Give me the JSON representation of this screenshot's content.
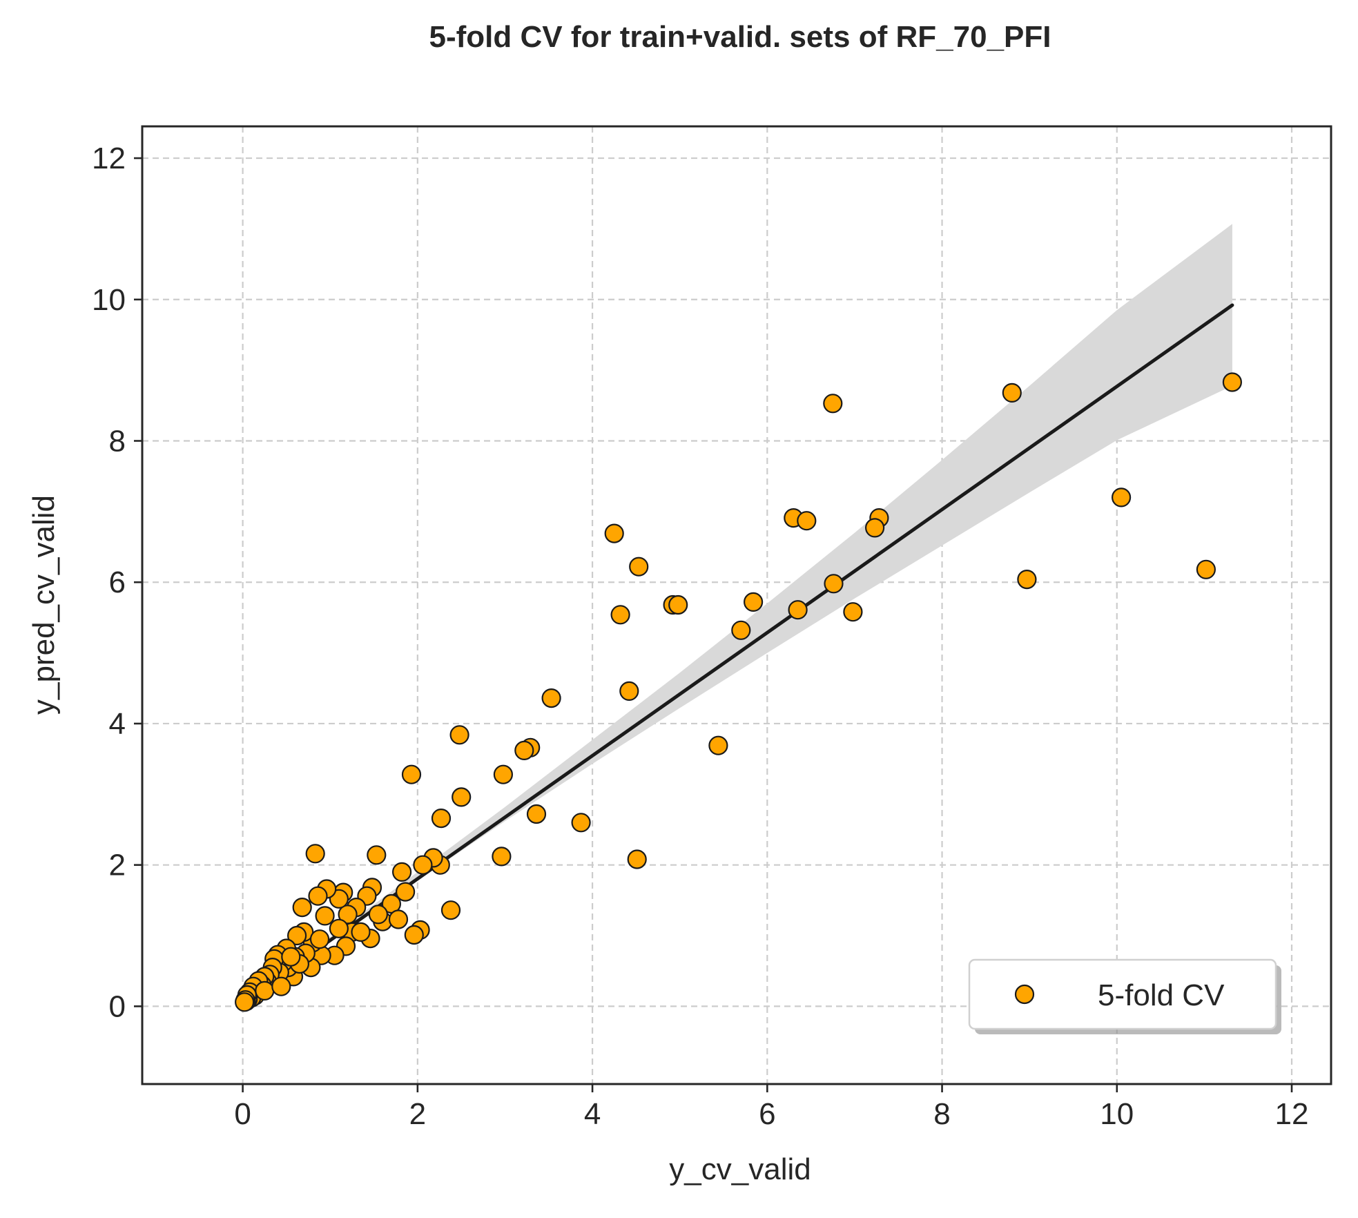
{
  "chart_data": {
    "type": "scatter",
    "title": "5-fold CV for train+valid. sets of RF_70_PFI",
    "xlabel": "y_cv_valid",
    "ylabel": "y_pred_cv_valid",
    "xlim": [
      -1.15,
      12.45
    ],
    "ylim": [
      -1.1,
      12.45
    ],
    "x_ticks": [
      0,
      2,
      4,
      6,
      8,
      10,
      12
    ],
    "y_ticks": [
      0,
      2,
      4,
      6,
      8,
      10,
      12
    ],
    "x_tick_labels": [
      "0",
      "2",
      "4",
      "6",
      "8",
      "10",
      "12"
    ],
    "y_tick_labels": [
      "0",
      "2",
      "4",
      "6",
      "8",
      "10",
      "12"
    ],
    "grid": true,
    "legend": {
      "position": "lower-right",
      "entries": [
        "5-fold CV"
      ]
    },
    "colors": {
      "points": "#ffa500",
      "point_edge": "#1a1a1a",
      "fit_line": "#1a1a1a",
      "ci_band": "#d9d9d9"
    },
    "series": [
      {
        "name": "5-fold CV",
        "points": [
          [
            11.32,
            8.83
          ],
          [
            8.8,
            8.68
          ],
          [
            6.75,
            8.53
          ],
          [
            10.05,
            7.2
          ],
          [
            11.02,
            6.18
          ],
          [
            8.97,
            6.04
          ],
          [
            7.28,
            6.91
          ],
          [
            7.23,
            6.77
          ],
          [
            6.3,
            6.91
          ],
          [
            6.45,
            6.87
          ],
          [
            6.76,
            5.98
          ],
          [
            6.98,
            5.58
          ],
          [
            6.35,
            5.61
          ],
          [
            5.84,
            5.72
          ],
          [
            5.7,
            5.32
          ],
          [
            5.44,
            3.69
          ],
          [
            4.25,
            6.69
          ],
          [
            4.53,
            6.22
          ],
          [
            4.32,
            5.54
          ],
          [
            4.92,
            5.68
          ],
          [
            4.98,
            5.68
          ],
          [
            4.42,
            4.46
          ],
          [
            4.51,
            2.08
          ],
          [
            3.53,
            4.36
          ],
          [
            3.29,
            3.66
          ],
          [
            3.22,
            3.62
          ],
          [
            2.98,
            3.28
          ],
          [
            3.36,
            2.72
          ],
          [
            3.87,
            2.6
          ],
          [
            2.96,
            2.12
          ],
          [
            2.48,
            3.84
          ],
          [
            2.5,
            2.96
          ],
          [
            1.93,
            3.28
          ],
          [
            2.27,
            2.66
          ],
          [
            2.38,
            1.36
          ],
          [
            2.26,
            2.0
          ],
          [
            2.18,
            2.1
          ],
          [
            2.06,
            2.0
          ],
          [
            2.03,
            1.08
          ],
          [
            1.96,
            1.01
          ],
          [
            1.86,
            1.62
          ],
          [
            1.82,
            1.9
          ],
          [
            1.53,
            2.14
          ],
          [
            1.48,
            1.68
          ],
          [
            1.42,
            1.56
          ],
          [
            1.46,
            0.96
          ],
          [
            1.6,
            1.2
          ],
          [
            1.7,
            1.45
          ],
          [
            1.78,
            1.23
          ],
          [
            1.3,
            1.4
          ],
          [
            1.2,
            1.3
          ],
          [
            1.15,
            1.61
          ],
          [
            1.1,
            1.52
          ],
          [
            1.25,
            1.05
          ],
          [
            1.35,
            1.05
          ],
          [
            1.18,
            0.85
          ],
          [
            1.05,
            0.72
          ],
          [
            0.96,
            1.66
          ],
          [
            0.86,
            1.56
          ],
          [
            0.83,
            2.16
          ],
          [
            0.94,
            1.28
          ],
          [
            0.9,
            0.72
          ],
          [
            0.8,
            0.9
          ],
          [
            0.78,
            0.55
          ],
          [
            0.68,
            1.4
          ],
          [
            0.7,
            1.05
          ],
          [
            0.72,
            0.75
          ],
          [
            0.62,
            1.0
          ],
          [
            0.6,
            0.7
          ],
          [
            0.58,
            0.42
          ],
          [
            0.5,
            0.82
          ],
          [
            0.52,
            0.55
          ],
          [
            0.46,
            0.62
          ],
          [
            0.4,
            0.73
          ],
          [
            0.42,
            0.48
          ],
          [
            0.36,
            0.67
          ],
          [
            0.34,
            0.55
          ],
          [
            0.31,
            0.45
          ],
          [
            0.28,
            0.35
          ],
          [
            0.25,
            0.42
          ],
          [
            0.22,
            0.3
          ],
          [
            0.2,
            0.25
          ],
          [
            0.18,
            0.36
          ],
          [
            0.16,
            0.22
          ],
          [
            0.14,
            0.15
          ],
          [
            0.12,
            0.28
          ],
          [
            0.1,
            0.12
          ],
          [
            0.08,
            0.2
          ],
          [
            0.06,
            0.1
          ],
          [
            0.05,
            0.16
          ],
          [
            0.04,
            0.07
          ],
          [
            0.03,
            0.09
          ],
          [
            0.02,
            0.06
          ],
          [
            0.25,
            0.22
          ],
          [
            0.44,
            0.28
          ],
          [
            1.1,
            1.1
          ],
          [
            1.55,
            1.3
          ],
          [
            0.65,
            0.6
          ],
          [
            0.88,
            0.95
          ],
          [
            0.55,
            0.7
          ]
        ]
      }
    ],
    "fit_line": {
      "x": [
        0.02,
        11.32
      ],
      "y": [
        0.08,
        9.92
      ]
    },
    "ci_band": {
      "x": [
        0.02,
        1.0,
        2.0,
        3.0,
        4.0,
        5.0,
        6.0,
        7.0,
        8.0,
        9.0,
        10.0,
        11.32
      ],
      "lower": [
        0.05,
        0.92,
        1.78,
        2.62,
        3.43,
        4.22,
        5.0,
        5.77,
        6.52,
        7.27,
        8.01,
        8.78
      ],
      "upper": [
        0.12,
        0.98,
        1.9,
        2.82,
        3.77,
        4.72,
        5.7,
        6.7,
        7.73,
        8.78,
        9.85,
        11.07
      ]
    }
  }
}
